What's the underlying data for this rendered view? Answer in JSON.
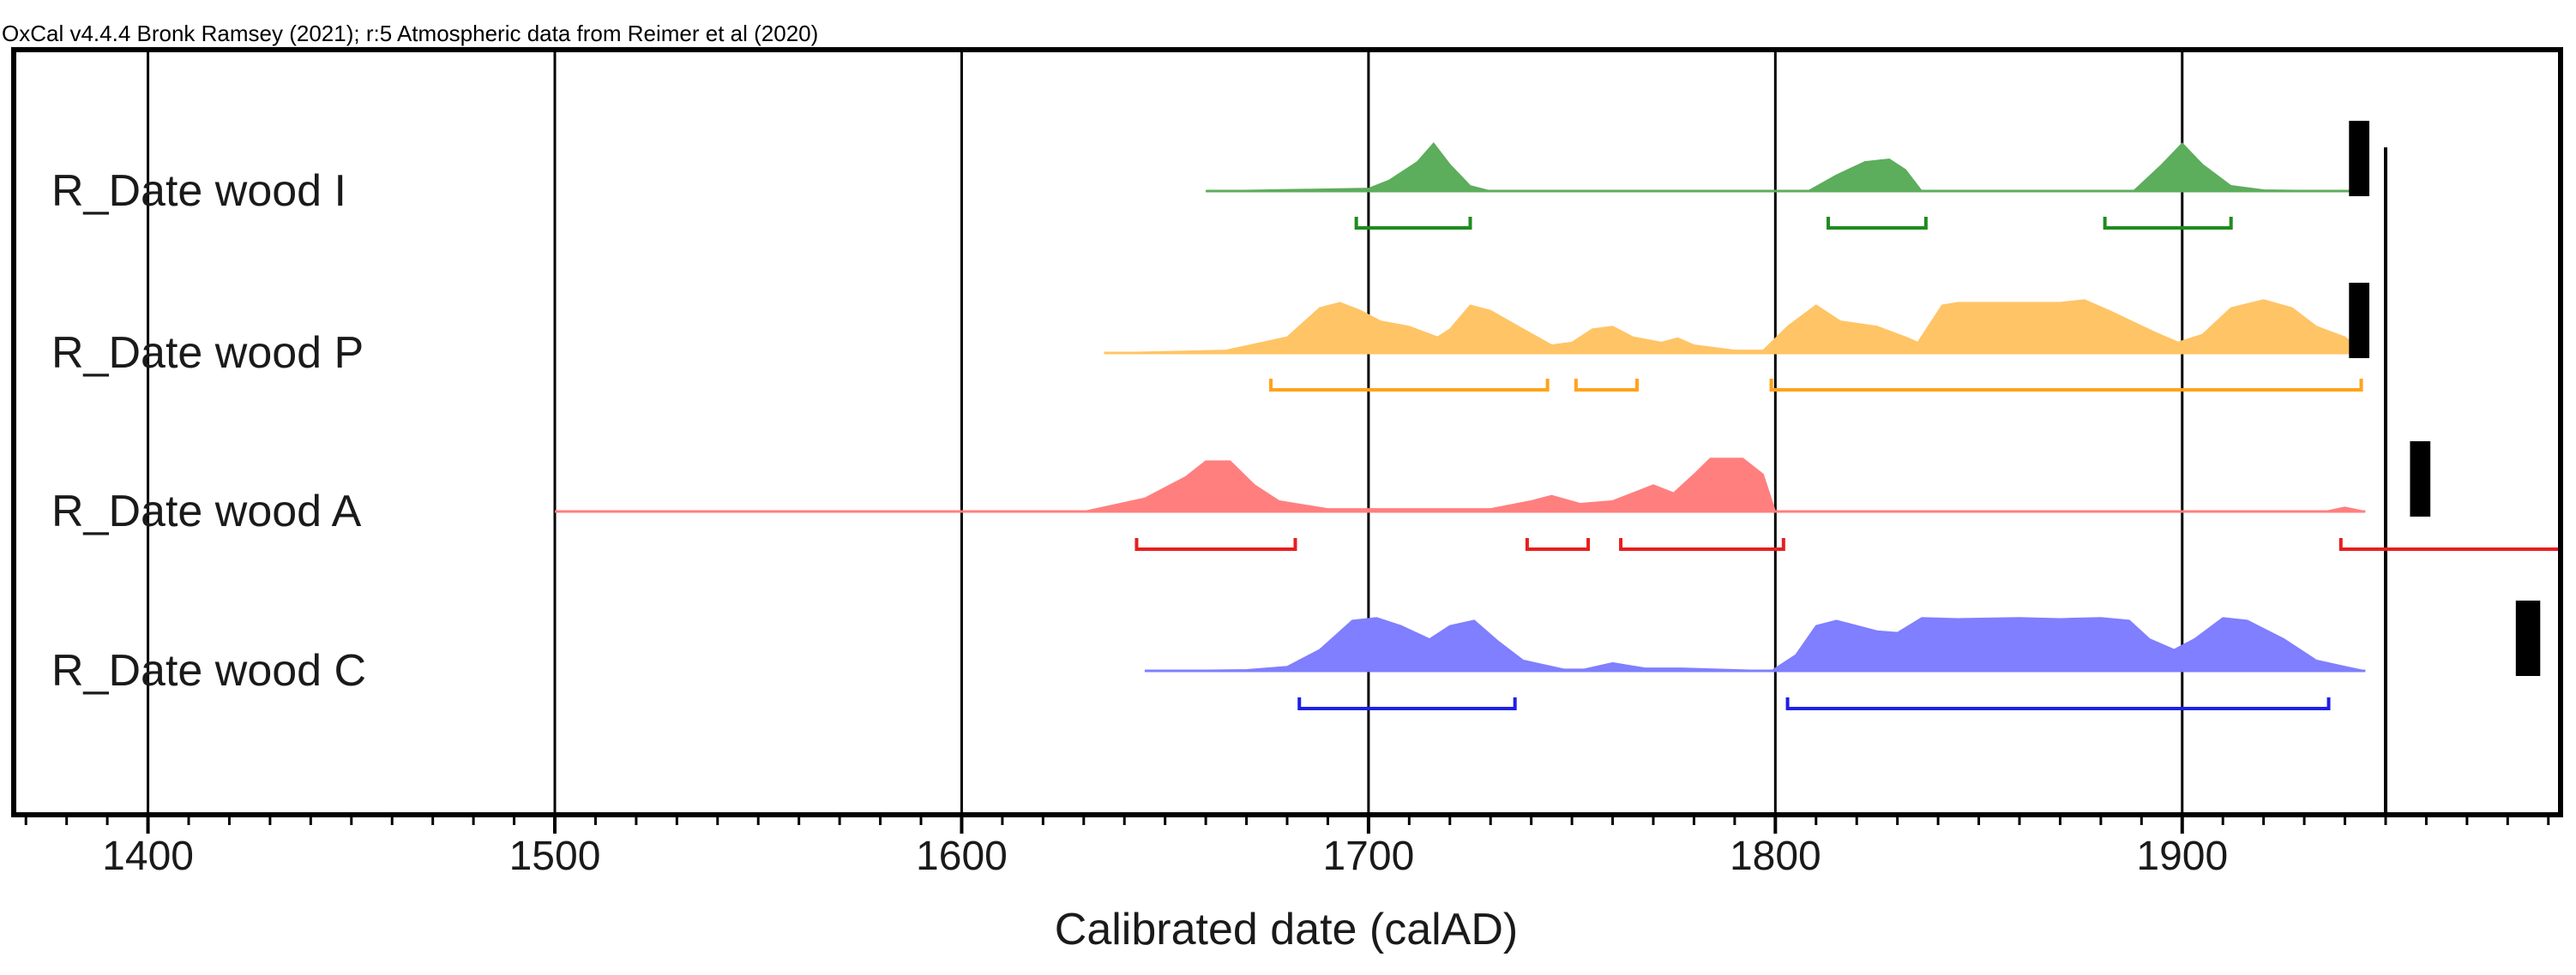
{
  "header": {
    "caption": "OxCal v4.4.4 Bronk Ramsey (2021); r:5 Atmospheric data from Reimer et al (2020)"
  },
  "chart_data": {
    "type": "area",
    "title": "",
    "xlabel": "Calibrated date (calAD)",
    "ylabel": "",
    "xlim": [
      1367,
      1993
    ],
    "x_ticks": [
      "1400",
      "1500",
      "1600",
      "1700",
      "1800",
      "1900"
    ],
    "x_tick_values": [
      1400,
      1500,
      1600,
      1700,
      1800,
      1900
    ],
    "grid": true,
    "legend": "none",
    "reference_line": 1950,
    "series": [
      {
        "name": "R_Date wood I",
        "color": "#5cad5c",
        "range_color": "#1e8c1e",
        "baseline_start": 1660,
        "baseline_end": 1945,
        "density": [
          [
            1660,
            0
          ],
          [
            1700,
            0.05
          ],
          [
            1705,
            0.2
          ],
          [
            1712,
            0.55
          ],
          [
            1716,
            0.9
          ],
          [
            1720,
            0.5
          ],
          [
            1725,
            0.1
          ],
          [
            1730,
            0
          ],
          [
            1808,
            0
          ],
          [
            1815,
            0.3
          ],
          [
            1822,
            0.55
          ],
          [
            1828,
            0.6
          ],
          [
            1832,
            0.4
          ],
          [
            1836,
            0
          ],
          [
            1888,
            0
          ],
          [
            1895,
            0.5
          ],
          [
            1900,
            0.9
          ],
          [
            1905,
            0.5
          ],
          [
            1912,
            0.1
          ],
          [
            1920,
            0.02
          ],
          [
            1945,
            0
          ]
        ],
        "ranges": [
          [
            1697,
            1725
          ],
          [
            1813,
            1837
          ],
          [
            1881,
            1912
          ]
        ],
        "end_marker": [
          1941,
          1946
        ]
      },
      {
        "name": "R_Date wood P",
        "color": "#ffc466",
        "range_color": "#ffa31a",
        "baseline_start": 1635,
        "baseline_end": 1945,
        "density": [
          [
            1635,
            0
          ],
          [
            1665,
            0.05
          ],
          [
            1680,
            0.3
          ],
          [
            1688,
            0.85
          ],
          [
            1693,
            0.95
          ],
          [
            1698,
            0.8
          ],
          [
            1703,
            0.6
          ],
          [
            1710,
            0.5
          ],
          [
            1717,
            0.3
          ],
          [
            1720,
            0.45
          ],
          [
            1725,
            0.9
          ],
          [
            1730,
            0.8
          ],
          [
            1738,
            0.45
          ],
          [
            1745,
            0.15
          ],
          [
            1750,
            0.2
          ],
          [
            1755,
            0.45
          ],
          [
            1760,
            0.5
          ],
          [
            1765,
            0.3
          ],
          [
            1772,
            0.2
          ],
          [
            1776,
            0.28
          ],
          [
            1780,
            0.15
          ],
          [
            1790,
            0.05
          ],
          [
            1797,
            0.05
          ],
          [
            1803,
            0.5
          ],
          [
            1810,
            0.9
          ],
          [
            1816,
            0.6
          ],
          [
            1825,
            0.5
          ],
          [
            1832,
            0.3
          ],
          [
            1835,
            0.2
          ],
          [
            1841,
            0.9
          ],
          [
            1845,
            0.95
          ],
          [
            1860,
            0.95
          ],
          [
            1870,
            0.95
          ],
          [
            1876,
            1.0
          ],
          [
            1882,
            0.8
          ],
          [
            1893,
            0.4
          ],
          [
            1899,
            0.2
          ],
          [
            1905,
            0.35
          ],
          [
            1912,
            0.85
          ],
          [
            1920,
            1.0
          ],
          [
            1927,
            0.85
          ],
          [
            1933,
            0.5
          ],
          [
            1940,
            0.3
          ],
          [
            1945,
            0
          ]
        ],
        "ranges": [
          [
            1676,
            1744
          ],
          [
            1751,
            1766
          ],
          [
            1799,
            1944
          ]
        ],
        "end_marker": [
          1941,
          1946
        ]
      },
      {
        "name": "R_Date wood A",
        "color": "#ff7f7f",
        "range_color": "#e61f1f",
        "baseline_start": 1500,
        "baseline_end": 1945,
        "density": [
          [
            1500,
            0
          ],
          [
            1630,
            0
          ],
          [
            1645,
            0.25
          ],
          [
            1655,
            0.65
          ],
          [
            1660,
            0.95
          ],
          [
            1666,
            0.95
          ],
          [
            1672,
            0.5
          ],
          [
            1678,
            0.2
          ],
          [
            1690,
            0.05
          ],
          [
            1730,
            0.05
          ],
          [
            1740,
            0.2
          ],
          [
            1745,
            0.3
          ],
          [
            1752,
            0.15
          ],
          [
            1760,
            0.2
          ],
          [
            1765,
            0.35
          ],
          [
            1770,
            0.5
          ],
          [
            1775,
            0.35
          ],
          [
            1780,
            0.7
          ],
          [
            1784,
            1.0
          ],
          [
            1792,
            1.0
          ],
          [
            1797,
            0.7
          ],
          [
            1800,
            0
          ],
          [
            1935,
            0
          ],
          [
            1940,
            0.08
          ],
          [
            1945,
            0
          ]
        ],
        "ranges": [
          [
            1643,
            1682
          ],
          [
            1739,
            1754
          ],
          [
            1762,
            1802
          ],
          [
            1939,
            1993
          ]
        ],
        "end_marker": [
          1956,
          1961
        ]
      },
      {
        "name": "R_Date wood C",
        "color": "#7f7fff",
        "range_color": "#1f1fe6",
        "baseline_start": 1645,
        "baseline_end": 1945,
        "density": [
          [
            1645,
            0
          ],
          [
            1670,
            0.02
          ],
          [
            1680,
            0.08
          ],
          [
            1688,
            0.4
          ],
          [
            1696,
            0.95
          ],
          [
            1702,
            1.0
          ],
          [
            1708,
            0.85
          ],
          [
            1715,
            0.6
          ],
          [
            1720,
            0.85
          ],
          [
            1726,
            0.95
          ],
          [
            1732,
            0.55
          ],
          [
            1738,
            0.2
          ],
          [
            1748,
            0.03
          ],
          [
            1753,
            0.03
          ],
          [
            1760,
            0.15
          ],
          [
            1768,
            0.05
          ],
          [
            1777,
            0.05
          ],
          [
            1799,
            0
          ],
          [
            1805,
            0.3
          ],
          [
            1810,
            0.85
          ],
          [
            1815,
            0.95
          ],
          [
            1825,
            0.75
          ],
          [
            1830,
            0.72
          ],
          [
            1836,
            1.0
          ],
          [
            1845,
            0.98
          ],
          [
            1860,
            1.0
          ],
          [
            1870,
            0.98
          ],
          [
            1880,
            1.0
          ],
          [
            1887,
            0.95
          ],
          [
            1892,
            0.6
          ],
          [
            1898,
            0.4
          ],
          [
            1903,
            0.6
          ],
          [
            1910,
            1.0
          ],
          [
            1916,
            0.95
          ],
          [
            1925,
            0.6
          ],
          [
            1933,
            0.2
          ],
          [
            1940,
            0.08
          ],
          [
            1945,
            0
          ]
        ],
        "ranges": [
          [
            1683,
            1736
          ],
          [
            1803,
            1936
          ]
        ],
        "end_marker": [
          1982,
          1988
        ]
      }
    ]
  }
}
